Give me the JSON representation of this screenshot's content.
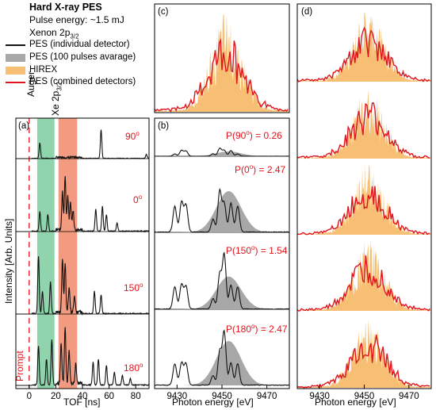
{
  "legend": {
    "heading": "Hard X-ray PES",
    "line1": "Pulse energy: ~1.5 mJ",
    "line2_main": "Xenon 2p",
    "line2_sub": "3/2",
    "items": [
      {
        "label": "PES (individual detector)",
        "kind": "line",
        "color": "#111111"
      },
      {
        "label": "PES (100 pulses avarage)",
        "kind": "fill",
        "color": "#a8a8a8"
      },
      {
        "label": "HIREX",
        "kind": "fill",
        "color": "#f7bf73"
      },
      {
        "label": "PES (combined detectors)",
        "kind": "line",
        "color": "#e0141c"
      }
    ]
  },
  "colors": {
    "auger_band": "#7ccca0",
    "xe_band": "#f08a6a",
    "pes_line": "#111111",
    "pes_avg": "#a8a8a8",
    "hirex": "#f7bf73",
    "combined": "#e0141c",
    "angle_text": "#e0141c",
    "prompt_line": "#e0141c"
  },
  "chart_data": [
    {
      "panel": "(a)",
      "type": "line",
      "xlabel": "TOF [ns]",
      "ylabel": "Intensity [Arb. Units]",
      "xlim": [
        -10,
        90
      ],
      "xticks": [
        0,
        20,
        40,
        60,
        80
      ],
      "bands": [
        {
          "label": "Auger",
          "x_range": [
            6,
            19
          ]
        },
        {
          "label_main": "Xe 2p",
          "label_sub": "3/2",
          "x_range": [
            22,
            36
          ]
        }
      ],
      "marker": {
        "label": "Prompt",
        "x": 0
      },
      "series": [
        {
          "angle_main": "90",
          "angle_sup": "o",
          "peaks": [
            [
              8,
              0.4
            ],
            [
              54,
              0.75
            ],
            [
              88,
              0.1
            ]
          ]
        },
        {
          "angle_main": "0",
          "angle_sup": "o",
          "peaks": [
            [
              8,
              0.35
            ],
            [
              14,
              0.3
            ],
            [
              25,
              0.7
            ],
            [
              27,
              0.95
            ],
            [
              29,
              0.6
            ],
            [
              31,
              0.5
            ],
            [
              33,
              0.35
            ],
            [
              50,
              0.4
            ],
            [
              55,
              0.45
            ],
            [
              58,
              0.3
            ],
            [
              66,
              0.15
            ]
          ]
        },
        {
          "angle_main": "150",
          "angle_sup": "o",
          "peaks": [
            [
              7,
              0.9
            ],
            [
              10,
              0.35
            ],
            [
              16,
              0.5
            ],
            [
              25,
              0.85
            ],
            [
              27,
              0.75
            ],
            [
              30,
              0.4
            ],
            [
              34,
              0.25
            ],
            [
              49,
              0.35
            ],
            [
              54,
              0.3
            ]
          ]
        },
        {
          "angle_main": "180",
          "angle_sup": "o",
          "peaks": [
            [
              7,
              0.6
            ],
            [
              13,
              0.4
            ],
            [
              17,
              0.7
            ],
            [
              24,
              0.6
            ],
            [
              27,
              0.85
            ],
            [
              30,
              0.5
            ],
            [
              35,
              0.3
            ],
            [
              48,
              0.35
            ],
            [
              52,
              0.4
            ],
            [
              58,
              0.3
            ],
            [
              64,
              0.2
            ],
            [
              70,
              0.15
            ],
            [
              76,
              0.1
            ]
          ]
        }
      ]
    },
    {
      "panel": "(b)",
      "type": "line",
      "xlabel": "Photon energy [eV]",
      "xlim": [
        9420,
        9480
      ],
      "xticks": [
        9430,
        9450,
        9470
      ],
      "annotations": [
        {
          "text_prefix": "P(90",
          "text_mid": "o",
          "text_suffix": ") = 0.26"
        },
        {
          "text_prefix": "P(0",
          "text_mid": "o",
          "text_suffix": ") = 2.47"
        },
        {
          "text_prefix": "P(150",
          "text_mid": "o",
          "text_suffix": ") = 1.54"
        },
        {
          "text_prefix": "P(180",
          "text_mid": "o",
          "text_suffix": ") = 2.47"
        }
      ],
      "avg_gaussian": {
        "center": 9453,
        "width": 5.5,
        "amplitudes": [
          0.15,
          0.65,
          0.55,
          0.7
        ]
      }
    },
    {
      "panel": "(c)",
      "type": "area",
      "xlim": [
        9420,
        9480
      ],
      "series": [
        {
          "name": "HIREX"
        },
        {
          "name": "PES (combined detectors)"
        }
      ]
    },
    {
      "panel": "(d)",
      "type": "area",
      "xlabel": "Photon energy [eV]",
      "xlim": [
        9420,
        9480
      ],
      "xticks": [
        9430,
        9450,
        9470
      ],
      "shot_count": 5
    }
  ]
}
